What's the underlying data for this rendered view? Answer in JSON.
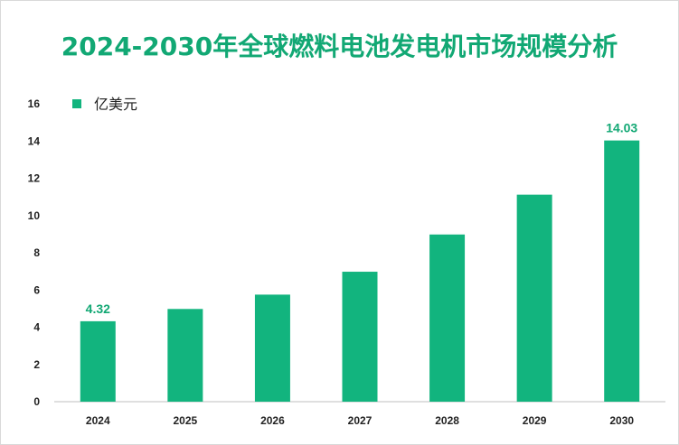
{
  "chart_data": {
    "type": "bar",
    "title": "2024-2030年全球燃料电池发电机市场规模分析",
    "categories": [
      "2024",
      "2025",
      "2026",
      "2027",
      "2028",
      "2029",
      "2030"
    ],
    "series": [
      {
        "name": "亿美元",
        "values": [
          4.32,
          4.98,
          5.75,
          6.98,
          8.98,
          11.12,
          14.03
        ],
        "color": "#12b47e"
      }
    ],
    "data_labels": [
      "4.32",
      "",
      "",
      "",
      "",
      "",
      "14.03"
    ],
    "ylim": [
      0,
      16
    ],
    "yticks": [
      0,
      2,
      4,
      6,
      8,
      10,
      12,
      14,
      16
    ],
    "ytick_labels": [
      "0",
      "2",
      "4",
      "6",
      "8",
      "10",
      "12",
      "14",
      "16"
    ],
    "xlabel": "",
    "ylabel": "",
    "legend": {
      "position": "top-left"
    },
    "grid": false
  }
}
